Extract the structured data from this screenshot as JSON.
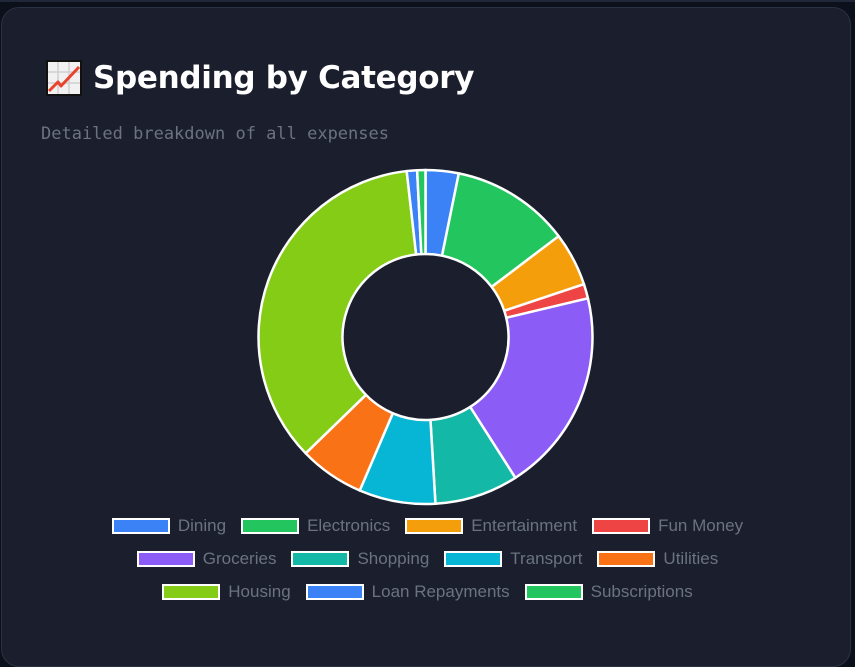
{
  "header": {
    "title": "Spending by Category",
    "subtitle": "Detailed breakdown of all expenses",
    "icon": "chart-increasing-icon"
  },
  "chart_data": {
    "type": "pie",
    "subtype": "doughnut",
    "title": "Spending by Category",
    "subtitle": "Detailed breakdown of all expenses",
    "unit": "percent (estimated from slice angles)",
    "categories": [
      "Dining",
      "Electronics",
      "Entertainment",
      "Fun Money",
      "Groceries",
      "Shopping",
      "Transport",
      "Utilities",
      "Housing",
      "Loan Repayments",
      "Subscriptions"
    ],
    "values": [
      3.2,
      11.5,
      5.2,
      1.4,
      19.7,
      8.1,
      7.4,
      6.3,
      35.5,
      1.0,
      0.8
    ],
    "colors": [
      "#3b82f6",
      "#22c55e",
      "#f59e0b",
      "#ef4444",
      "#8b5cf6",
      "#14b8a6",
      "#06b6d4",
      "#f97316",
      "#84cc16",
      "#3b82f6",
      "#22c55e"
    ],
    "legend_position": "bottom",
    "start_angle": 0,
    "direction": "clockwise",
    "slice_border_color": "#ffffff"
  },
  "legend": {
    "rows": [
      [
        0,
        1,
        2,
        3
      ],
      [
        4,
        5,
        6,
        7
      ],
      [
        8,
        9,
        10
      ]
    ]
  }
}
